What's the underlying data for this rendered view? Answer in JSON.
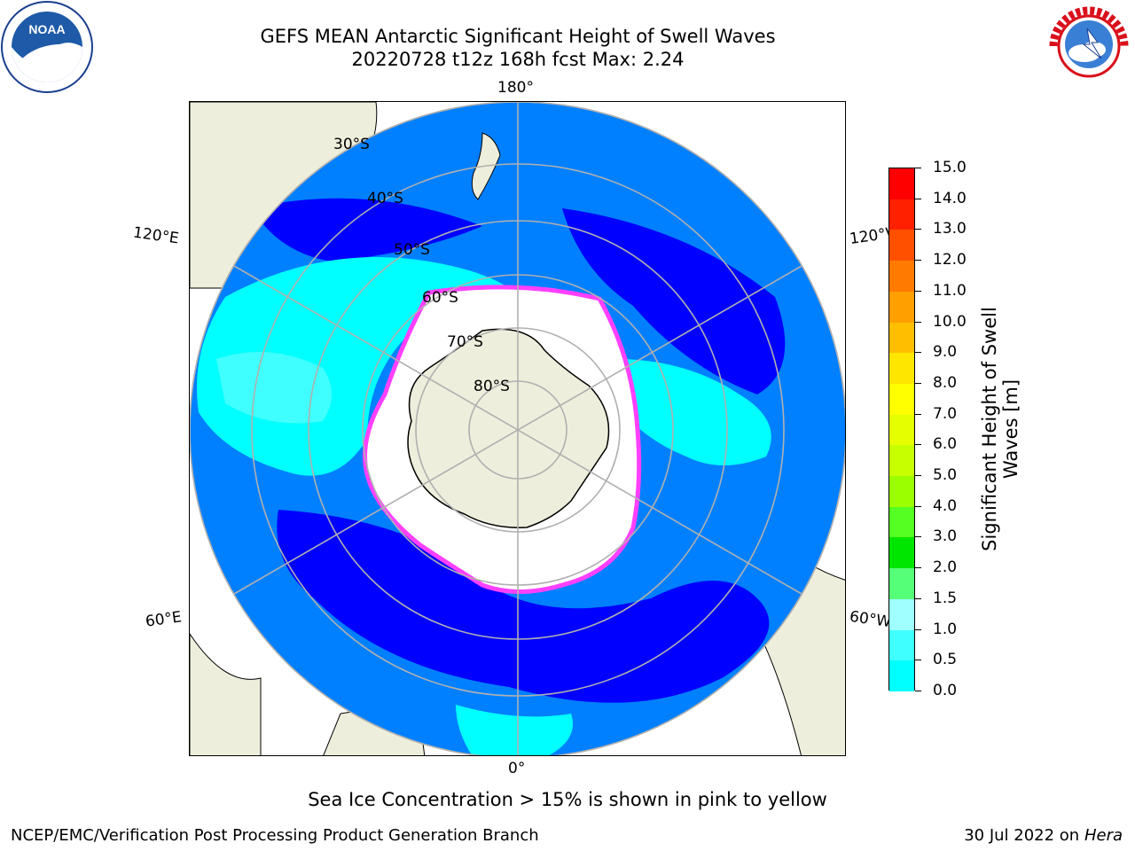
{
  "header": {
    "title_line1": "GEFS MEAN Antarctic Significant Height of Swell Waves",
    "title_line2": "20220728 t12z 168h fcst   Max: 2.24"
  },
  "logos": {
    "left": {
      "name": "noaa-logo",
      "text": "NOAA",
      "ring_text": "NATIONAL OCEANIC AND ATMOSPHERIC ADMINISTRATION · U.S. DEPARTMENT OF COMMERCE"
    },
    "right": {
      "name": "nws-logo",
      "ring_text": "NATIONAL WEATHER SERVICE"
    }
  },
  "map": {
    "projection": "south-polar-stereographic",
    "longitude_labels": {
      "top": "180°",
      "bottom": "0°",
      "upper_left": "120°E",
      "upper_right": "120°W",
      "lower_left": "60°E",
      "lower_right": "60°W"
    },
    "latitude_labels": [
      "30°S",
      "40°S",
      "50°S",
      "60°S",
      "70°S",
      "80°S"
    ],
    "colors": {
      "ocean_0_0.5": "#0000ff",
      "ocean_0.5_1.0": "#0080ff",
      "ocean_1.0_1.5": "#00ffff",
      "ocean_1.5_2.0": "#40ffff",
      "land": "#eeeedc",
      "ice_interior": "#ffffff",
      "ice_edge": "#ff40ff",
      "grid": "#b0b0b0"
    }
  },
  "colorbar": {
    "title_line1": "Significant Height of Swell",
    "title_line2": "Waves [m]",
    "ticks": [
      "15.0",
      "14.0",
      "13.0",
      "12.0",
      "11.0",
      "10.0",
      "9.0",
      "8.0",
      "7.0",
      "6.0",
      "5.0",
      "4.0",
      "3.0",
      "2.0",
      "1.5",
      "1.0",
      "0.5",
      "0.0"
    ],
    "segment_colors": [
      "#ff0000",
      "#ff2000",
      "#ff5000",
      "#ff7a00",
      "#ff9f00",
      "#ffbf00",
      "#ffe600",
      "#ffff00",
      "#e6ff00",
      "#c8ff00",
      "#9bff00",
      "#55ff22",
      "#00e600",
      "#55ff77",
      "#a0ffff",
      "#40ffff",
      "#00ffff",
      "#0080ff",
      "#0000ff"
    ]
  },
  "footer": {
    "ice_note": "Sea Ice Concentration > 15% is shown in pink to yellow",
    "credit": "NCEP/EMC/Verification Post Processing Product Generation Branch",
    "date": "30 Jul 2022 on",
    "host": "Hera"
  }
}
